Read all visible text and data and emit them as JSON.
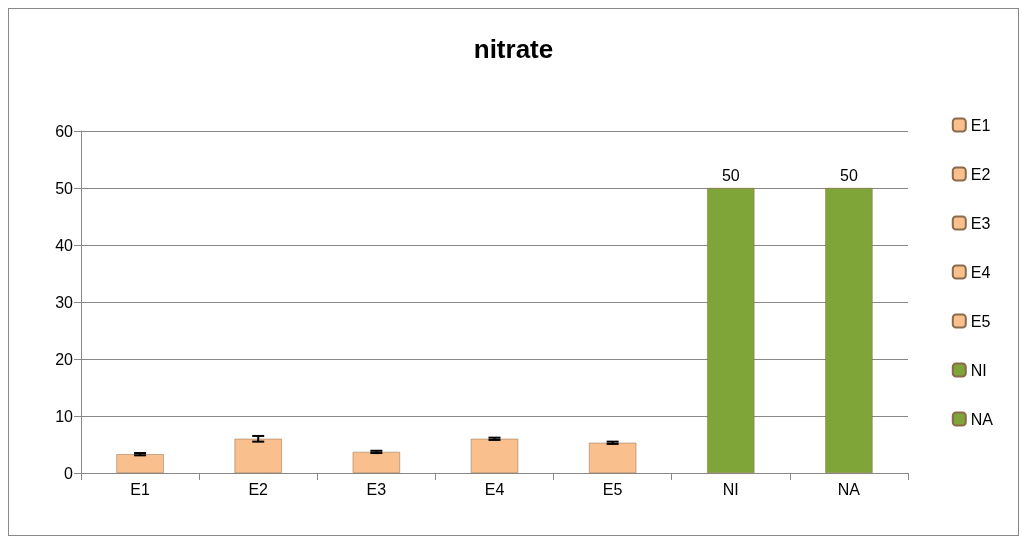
{
  "chart_data": {
    "type": "bar",
    "title": "nitrate",
    "categories": [
      "E1",
      "E2",
      "E3",
      "E4",
      "E5",
      "NI",
      "NA"
    ],
    "series": [
      {
        "name": "E1",
        "color": "#f9c08e",
        "values": [
          3.3,
          null,
          null,
          null,
          null,
          null,
          null
        ],
        "errors": [
          0.2,
          null,
          null,
          null,
          null,
          null,
          null
        ]
      },
      {
        "name": "E2",
        "color": "#f9c08e",
        "values": [
          null,
          6.0,
          null,
          null,
          null,
          null,
          null
        ],
        "errors": [
          null,
          0.5,
          null,
          null,
          null,
          null,
          null
        ]
      },
      {
        "name": "E3",
        "color": "#f9c08e",
        "values": [
          null,
          null,
          3.7,
          null,
          null,
          null,
          null
        ],
        "errors": [
          null,
          null,
          0.2,
          null,
          null,
          null,
          null
        ]
      },
      {
        "name": "E4",
        "color": "#f9c08e",
        "values": [
          null,
          null,
          null,
          6.0,
          null,
          null,
          null
        ],
        "errors": [
          null,
          null,
          null,
          0.2,
          null,
          null,
          null
        ]
      },
      {
        "name": "E5",
        "color": "#f9c08e",
        "values": [
          null,
          null,
          null,
          null,
          5.3,
          null,
          null
        ],
        "errors": [
          null,
          null,
          null,
          null,
          0.2,
          null,
          null
        ]
      },
      {
        "name": "NI",
        "color": "#7fa538",
        "values": [
          null,
          null,
          null,
          null,
          null,
          50,
          null
        ],
        "value_labels": [
          null,
          null,
          null,
          null,
          null,
          "50",
          null
        ]
      },
      {
        "name": "NA",
        "color": "#7fa538",
        "values": [
          null,
          null,
          null,
          null,
          null,
          null,
          50
        ],
        "value_labels": [
          null,
          null,
          null,
          null,
          null,
          null,
          "50"
        ]
      }
    ],
    "ylim": [
      0,
      60
    ],
    "yticks": [
      0,
      10,
      20,
      30,
      40,
      50,
      60
    ],
    "grid": "y",
    "legend": "right"
  }
}
